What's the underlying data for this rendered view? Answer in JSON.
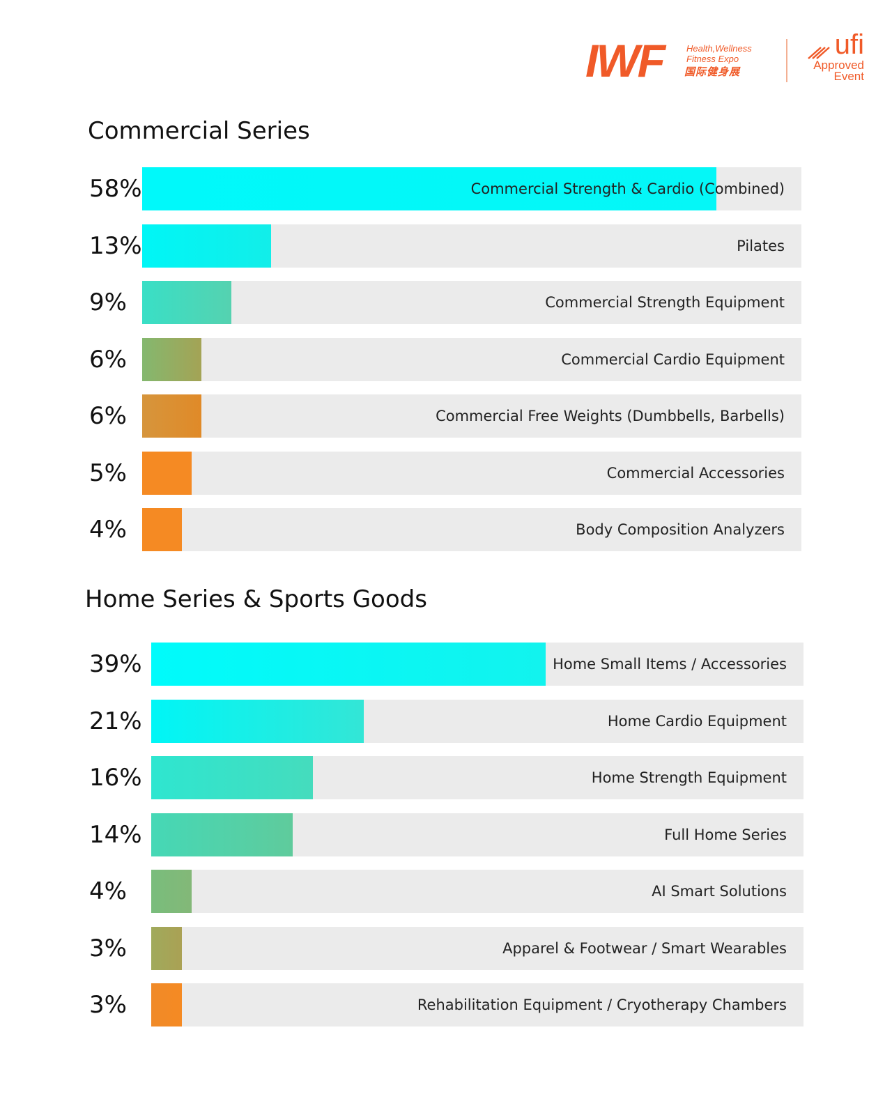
{
  "logo": {
    "brand": "IWF",
    "tagline_1": "Health,Wellness",
    "tagline_2": "Fitness Expo",
    "tagline_cn": "国际健身展",
    "ufi_text": "ufi",
    "ufi_sub_1": "Approved",
    "ufi_sub_2": "Event"
  },
  "colors": {
    "cyan": "#00fbfb",
    "teal": "#30e2c4",
    "green": "#79bd7c",
    "orange": "#f58a23",
    "track": "#ebebeb",
    "brand": "#f05a28"
  },
  "chart_data": [
    {
      "type": "bar",
      "title": "Commercial Series",
      "categories": [
        "Commercial Strength & Cardio (Combined)",
        "Pilates",
        "Commercial Strength Equipment",
        "Commercial Cardio Equipment",
        "Commercial Free Weights (Dumbbells, Barbells)",
        "Commercial Accessories",
        "Body Composition Analyzers"
      ],
      "values": [
        58,
        13,
        9,
        6,
        6,
        5,
        4
      ],
      "labels": [
        "58%",
        "13%",
        "9%",
        "6%",
        "6%",
        "5%",
        "4%"
      ],
      "fill_colors": [
        [
          "#00f9fa",
          "#05f7f7"
        ],
        [
          "#00f6f6",
          "#12eee9"
        ],
        [
          "#39dfc6",
          "#55d2b0"
        ],
        [
          "#84b86f",
          "#a4a355"
        ],
        [
          "#d6953c",
          "#e08a28"
        ],
        [
          "#f58a23",
          "#f58a23"
        ],
        [
          "#f58a23",
          "#f58a23"
        ]
      ],
      "xlim": [
        0,
        100
      ]
    },
    {
      "type": "bar",
      "title": "Home Series & Sports Goods",
      "categories": [
        "Home Small Items / Accessories",
        "Home Cardio Equipment",
        "Home Strength Equipment",
        "Full Home Series",
        "AI Smart Solutions",
        "Apparel & Footwear / Smart Wearables",
        "Rehabilitation Equipment / Cryotherapy Chambers"
      ],
      "values": [
        39,
        21,
        16,
        14,
        4,
        3,
        3
      ],
      "labels": [
        "39%",
        "21%",
        "16%",
        "14%",
        "4%",
        "3%",
        "3%"
      ],
      "fill_colors": [
        [
          "#00fbfb",
          "#12f3ee"
        ],
        [
          "#00f6f6",
          "#33e6d6"
        ],
        [
          "#2ee6d0",
          "#45dcbd"
        ],
        [
          "#45d8b6",
          "#5fcb9c"
        ],
        [
          "#79bd7c",
          "#83b878"
        ],
        [
          "#a0aa5c",
          "#aaa154"
        ],
        [
          "#f08a28",
          "#f58a23"
        ]
      ],
      "xlim": [
        0,
        100
      ]
    }
  ]
}
